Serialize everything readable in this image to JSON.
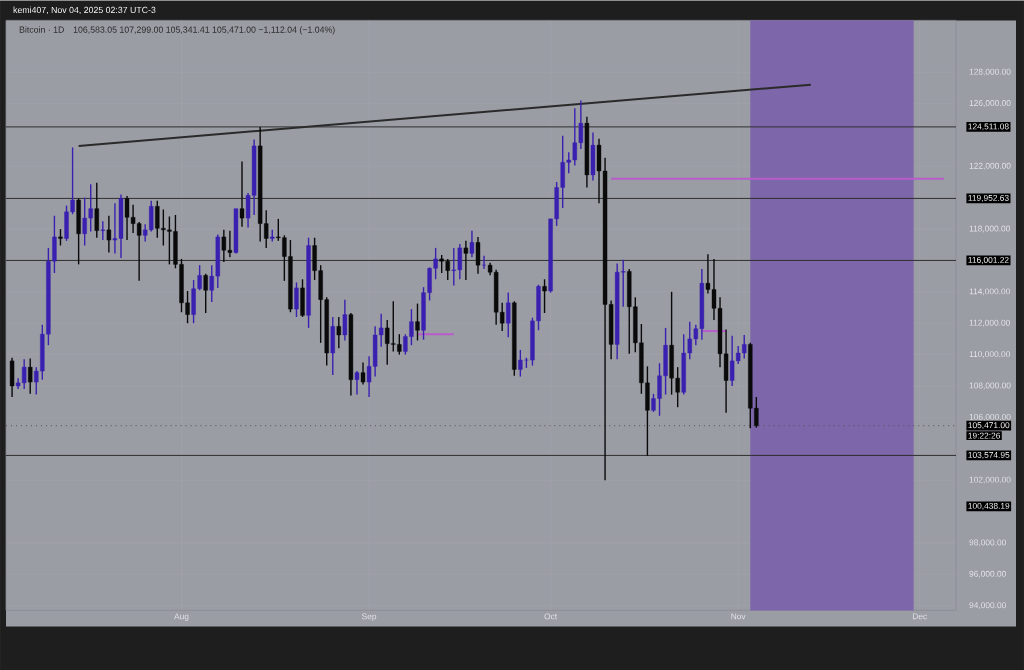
{
  "chart_data": {
    "type": "candlestick",
    "title": "Bitcoin · 1D",
    "annotations": [
      "kemi407, Nov 04, 2025 02:37 UTC-3",
      "106,583.05   107,299.00   105,341.41   105,471.00   −1,112.04 (−1.04%)",
      "19:22:26",
      "100,438.19"
    ],
    "x": [
      "2025-07-04",
      "2025-07-05",
      "2025-07-06",
      "2025-07-07",
      "2025-07-08",
      "2025-07-09",
      "2025-07-10",
      "2025-07-11",
      "2025-07-12",
      "2025-07-13",
      "2025-07-14",
      "2025-07-15",
      "2025-07-16",
      "2025-07-17",
      "2025-07-18",
      "2025-07-19",
      "2025-07-20",
      "2025-07-21",
      "2025-07-22",
      "2025-07-23",
      "2025-07-24",
      "2025-07-25",
      "2025-07-26",
      "2025-07-27",
      "2025-07-28",
      "2025-07-29",
      "2025-07-30",
      "2025-07-31",
      "2025-08-01",
      "2025-08-02",
      "2025-08-03",
      "2025-08-04",
      "2025-08-05",
      "2025-08-06",
      "2025-08-07",
      "2025-08-08",
      "2025-08-09",
      "2025-08-10",
      "2025-08-11",
      "2025-08-12",
      "2025-08-13",
      "2025-08-14",
      "2025-08-15",
      "2025-08-16",
      "2025-08-17",
      "2025-08-18",
      "2025-08-19",
      "2025-08-20",
      "2025-08-21",
      "2025-08-22",
      "2025-08-23",
      "2025-08-24",
      "2025-08-25",
      "2025-08-26",
      "2025-08-27",
      "2025-08-28",
      "2025-08-29",
      "2025-08-30",
      "2025-08-31",
      "2025-09-01",
      "2025-09-02",
      "2025-09-03",
      "2025-09-04",
      "2025-09-05",
      "2025-09-06",
      "2025-09-07",
      "2025-09-08",
      "2025-09-09",
      "2025-09-10",
      "2025-09-11",
      "2025-09-12",
      "2025-09-13",
      "2025-09-14",
      "2025-09-15",
      "2025-09-16",
      "2025-09-17",
      "2025-09-18",
      "2025-09-19",
      "2025-09-20",
      "2025-09-21",
      "2025-09-22",
      "2025-09-23",
      "2025-09-24",
      "2025-09-25",
      "2025-09-26",
      "2025-09-27",
      "2025-09-28",
      "2025-09-29",
      "2025-09-30",
      "2025-10-01",
      "2025-10-02",
      "2025-10-03",
      "2025-10-04",
      "2025-10-05",
      "2025-10-06",
      "2025-10-07",
      "2025-10-08",
      "2025-10-09",
      "2025-10-10",
      "2025-10-11",
      "2025-10-12",
      "2025-10-13",
      "2025-10-14",
      "2025-10-15",
      "2025-10-16",
      "2025-10-17",
      "2025-10-18",
      "2025-10-19",
      "2025-10-20",
      "2025-10-21",
      "2025-10-22",
      "2025-10-23",
      "2025-10-24",
      "2025-10-25",
      "2025-10-26",
      "2025-10-27",
      "2025-10-28",
      "2025-10-29",
      "2025-10-30",
      "2025-10-31",
      "2025-11-01",
      "2025-11-02",
      "2025-11-03",
      "2025-11-04"
    ],
    "ohlc": [
      [
        109600,
        109800,
        107300,
        108000
      ],
      [
        108000,
        108500,
        107800,
        108200
      ],
      [
        108200,
        109700,
        107800,
        109200
      ],
      [
        109200,
        109750,
        107500,
        108250
      ],
      [
        108250,
        109200,
        107450,
        108950
      ],
      [
        108950,
        111900,
        108400,
        111300
      ],
      [
        111300,
        116800,
        110600,
        115950
      ],
      [
        115950,
        118850,
        115200,
        117500
      ],
      [
        117500,
        118000,
        116950,
        117400
      ],
      [
        117400,
        119500,
        117250,
        119100
      ],
      [
        119100,
        123200,
        118950,
        119850
      ],
      [
        119850,
        119950,
        115750,
        117700
      ],
      [
        117700,
        120000,
        116950,
        118700
      ],
      [
        118700,
        120850,
        117850,
        119300
      ],
      [
        119300,
        120950,
        117450,
        117900
      ],
      [
        117900,
        118500,
        117300,
        117950
      ],
      [
        117950,
        118850,
        116500,
        117300
      ],
      [
        117300,
        119650,
        116450,
        117400
      ],
      [
        117400,
        120200,
        116150,
        119950
      ],
      [
        119950,
        120100,
        117300,
        118750
      ],
      [
        118750,
        119550,
        117750,
        118350
      ],
      [
        118350,
        118450,
        114700,
        117600
      ],
      [
        117600,
        118300,
        117200,
        117950
      ],
      [
        117950,
        119800,
        117850,
        119450
      ],
      [
        119450,
        119800,
        117450,
        118050
      ],
      [
        118050,
        119250,
        116950,
        117950
      ],
      [
        117950,
        118800,
        115750,
        117850
      ],
      [
        117850,
        118900,
        115500,
        115750
      ],
      [
        115750,
        116100,
        112700,
        113300
      ],
      [
        113300,
        114050,
        112000,
        112550
      ],
      [
        112550,
        114750,
        112000,
        114200
      ],
      [
        114200,
        115700,
        114100,
        115050
      ],
      [
        115050,
        115150,
        112650,
        114100
      ],
      [
        114100,
        115700,
        113350,
        115000
      ],
      [
        115000,
        117650,
        114250,
        117500
      ],
      [
        117500,
        117950,
        115900,
        116650
      ],
      [
        116650,
        117900,
        116200,
        116500
      ],
      [
        116500,
        119300,
        116450,
        119300
      ],
      [
        119300,
        122300,
        118150,
        118700
      ],
      [
        118700,
        120300,
        118100,
        120150
      ],
      [
        120150,
        123700,
        118900,
        123300
      ],
      [
        123300,
        124500,
        117200,
        118350
      ],
      [
        118350,
        119200,
        116800,
        117400
      ],
      [
        117400,
        117950,
        117200,
        117500
      ],
      [
        117500,
        118650,
        117250,
        117450
      ],
      [
        117450,
        117600,
        114700,
        116250
      ],
      [
        116250,
        117300,
        112700,
        112900
      ],
      [
        112900,
        114600,
        112400,
        114250
      ],
      [
        114250,
        114800,
        112400,
        112500
      ],
      [
        112500,
        117450,
        111700,
        116950
      ],
      [
        116950,
        117450,
        114750,
        115350
      ],
      [
        115350,
        115700,
        110750,
        113500
      ],
      [
        113500,
        113650,
        109300,
        110100
      ],
      [
        110100,
        112400,
        108700,
        111800
      ],
      [
        111800,
        112400,
        110400,
        111250
      ],
      [
        111250,
        113500,
        110900,
        112550
      ],
      [
        112550,
        112650,
        107400,
        108400
      ],
      [
        108400,
        108950,
        107450,
        108850
      ],
      [
        108850,
        109500,
        108100,
        108250
      ],
      [
        108250,
        109900,
        107300,
        109250
      ],
      [
        109250,
        111800,
        108600,
        111250
      ],
      [
        111250,
        112600,
        110500,
        111700
      ],
      [
        111700,
        112200,
        109350,
        110700
      ],
      [
        110700,
        113400,
        110200,
        110650
      ],
      [
        110650,
        111300,
        110000,
        110200
      ],
      [
        110200,
        111300,
        110000,
        111150
      ],
      [
        111150,
        112900,
        110600,
        112100
      ],
      [
        112100,
        113250,
        110900,
        111550
      ],
      [
        111550,
        114300,
        110950,
        113950
      ],
      [
        113950,
        115550,
        113450,
        115500
      ],
      [
        115500,
        116800,
        114800,
        116100
      ],
      [
        116100,
        116350,
        115200,
        115950
      ],
      [
        115950,
        116100,
        114750,
        115350
      ],
      [
        115350,
        116800,
        114400,
        115400
      ],
      [
        115400,
        117050,
        114800,
        116800
      ],
      [
        116800,
        117250,
        114750,
        116450
      ],
      [
        116450,
        117900,
        116200,
        117150
      ],
      [
        117150,
        117500,
        115150,
        115700
      ],
      [
        115700,
        116300,
        115450,
        115700
      ],
      [
        115700,
        115850,
        115050,
        115250
      ],
      [
        115250,
        115400,
        111900,
        112700
      ],
      [
        112700,
        113300,
        111500,
        112000
      ],
      [
        112000,
        113950,
        111100,
        113300
      ],
      [
        113300,
        113400,
        108650,
        109050
      ],
      [
        109050,
        110300,
        108600,
        109650
      ],
      [
        109650,
        109800,
        109150,
        109650
      ],
      [
        109650,
        112350,
        109300,
        112150
      ],
      [
        112150,
        114450,
        111550,
        114350
      ],
      [
        114350,
        114800,
        112650,
        114050
      ],
      [
        114050,
        118650,
        113950,
        118650
      ],
      [
        118650,
        121000,
        118200,
        120650
      ],
      [
        120650,
        123950,
        119350,
        122250
      ],
      [
        122250,
        122900,
        121550,
        122400
      ],
      [
        122400,
        125700,
        122050,
        123500
      ],
      [
        123500,
        126200,
        123100,
        124750
      ],
      [
        124750,
        125150,
        120650,
        121450
      ],
      [
        121450,
        124150,
        121100,
        123350
      ],
      [
        123350,
        123750,
        119650,
        121700
      ],
      [
        121700,
        122550,
        102000,
        113200
      ],
      [
        113200,
        113450,
        109700,
        110650
      ],
      [
        110650,
        115800,
        109700,
        115250
      ],
      [
        115250,
        116050,
        113050,
        115300
      ],
      [
        115300,
        115450,
        110050,
        113050
      ],
      [
        113050,
        113650,
        110150,
        110750
      ],
      [
        110750,
        111950,
        107500,
        108200
      ],
      [
        108200,
        109250,
        103550,
        106450
      ],
      [
        106450,
        107500,
        106350,
        107200
      ],
      [
        107200,
        109450,
        106100,
        108650
      ],
      [
        108650,
        111700,
        107450,
        110600
      ],
      [
        110600,
        114000,
        107450,
        108500
      ],
      [
        108500,
        109200,
        106650,
        107600
      ],
      [
        107600,
        111300,
        107450,
        110100
      ],
      [
        110100,
        112100,
        109700,
        111000
      ],
      [
        111000,
        111900,
        110600,
        111650
      ],
      [
        111650,
        115450,
        110950,
        114550
      ],
      [
        114550,
        116400,
        113900,
        114150
      ],
      [
        114150,
        116100,
        112200,
        112950
      ],
      [
        112950,
        113650,
        109200,
        110050
      ],
      [
        110050,
        111600,
        106300,
        108350
      ],
      [
        108350,
        111200,
        108000,
        109600
      ],
      [
        109600,
        110550,
        109400,
        110100
      ],
      [
        110100,
        111250,
        109750,
        110650
      ],
      [
        110650,
        110750,
        105300,
        106583.05
      ],
      [
        106583.05,
        107299.0,
        105341.41,
        105471.0
      ]
    ],
    "colors": [
      "#0a0a0a",
      "#3a20b0",
      "#3a20b0",
      "#0a0a0a",
      "#3a20b0",
      "#3a20b0",
      "#3a20b0",
      "#3a20b0",
      "#0a0a0a",
      "#3a20b0",
      "#3a20b0",
      "#0a0a0a",
      "#3a20b0",
      "#3a20b0",
      "#0a0a0a",
      "#3a20b0",
      "#0a0a0a",
      "#3a20b0",
      "#3a20b0",
      "#0a0a0a",
      "#0a0a0a",
      "#0a0a0a",
      "#3a20b0",
      "#3a20b0",
      "#0a0a0a",
      "#0a0a0a",
      "#0a0a0a",
      "#0a0a0a",
      "#0a0a0a",
      "#0a0a0a",
      "#3a20b0",
      "#3a20b0",
      "#0a0a0a",
      "#3a20b0",
      "#3a20b0",
      "#0a0a0a",
      "#0a0a0a",
      "#3a20b0",
      "#0a0a0a",
      "#3a20b0",
      "#3a20b0",
      "#0a0a0a",
      "#0a0a0a",
      "#3a20b0",
      "#0a0a0a",
      "#0a0a0a",
      "#0a0a0a",
      "#3a20b0",
      "#0a0a0a",
      "#3a20b0",
      "#0a0a0a",
      "#0a0a0a",
      "#0a0a0a",
      "#3a20b0",
      "#0a0a0a",
      "#3a20b0",
      "#0a0a0a",
      "#3a20b0",
      "#0a0a0a",
      "#3a20b0",
      "#3a20b0",
      "#3a20b0",
      "#0a0a0a",
      "#0a0a0a",
      "#0a0a0a",
      "#3a20b0",
      "#3a20b0",
      "#0a0a0a",
      "#3a20b0",
      "#3a20b0",
      "#3a20b0",
      "#0a0a0a",
      "#0a0a0a",
      "#3a20b0",
      "#3a20b0",
      "#0a0a0a",
      "#3a20b0",
      "#0a0a0a",
      "#3a20b0",
      "#0a0a0a",
      "#0a0a0a",
      "#0a0a0a",
      "#3a20b0",
      "#0a0a0a",
      "#3a20b0",
      "#3a20b0",
      "#3a20b0",
      "#3a20b0",
      "#0a0a0a",
      "#3a20b0",
      "#3a20b0",
      "#3a20b0",
      "#3a20b0",
      "#3a20b0",
      "#3a20b0",
      "#0a0a0a",
      "#3a20b0",
      "#0a0a0a",
      "#0a0a0a",
      "#0a0a0a",
      "#3a20b0",
      "#3a20b0",
      "#0a0a0a",
      "#0a0a0a",
      "#0a0a0a",
      "#0a0a0a",
      "#3a20b0",
      "#3a20b0",
      "#3a20b0",
      "#0a0a0a",
      "#0a0a0a",
      "#3a20b0",
      "#3a20b0",
      "#3a20b0",
      "#3a20b0",
      "#0a0a0a",
      "#0a0a0a",
      "#0a0a0a",
      "#0a0a0a",
      "#3a20b0",
      "#3a20b0",
      "#3a20b0",
      "#0a0a0a",
      "#0a0a0a"
    ],
    "series": [
      {
        "type": "line",
        "color": "#2a2a2a",
        "x": [
          "2025-07-15",
          "2025-11-13"
        ],
        "values": [
          123300,
          127200
        ]
      },
      {
        "type": "line",
        "color": "#b85ccc",
        "x": [
          "2025-10-11",
          "2025-12-05"
        ],
        "values": [
          121200,
          121200
        ]
      },
      {
        "type": "line",
        "color": "#b85ccc",
        "x": [
          "2025-09-09",
          "2025-09-15"
        ],
        "values": [
          111300,
          111300
        ]
      },
      {
        "type": "line",
        "color": "#b85ccc",
        "x": [
          "2025-10-26",
          "2025-10-30"
        ],
        "values": [
          111500,
          111500
        ]
      }
    ],
    "ref_lines": [
      {
        "axis": "y",
        "value": 124511.08,
        "label": "124,511.08",
        "color": "#2e2e2e"
      },
      {
        "axis": "y",
        "value": 119952.63,
        "label": "119,952.63",
        "color": "#2e2e2e"
      },
      {
        "axis": "y",
        "value": 116001.22,
        "label": "116,001.22",
        "color": "#2e2e2e"
      },
      {
        "axis": "y",
        "value": 105471.0,
        "label": "105,471.00",
        "color": "#505050",
        "line_style": "dotted"
      },
      {
        "axis": "y",
        "value": 103574.95,
        "label": "103,574.95",
        "color": "#2e2e2e"
      }
    ],
    "bands": [
      {
        "axis": "x",
        "from": "2025-11-03",
        "to": "2025-11-30",
        "color": "#7d66a9"
      }
    ],
    "xlim": [
      "2025-07-03",
      "2025-12-07"
    ],
    "xticks": [
      {
        "value": "2025-08-01",
        "label": "Aug"
      },
      {
        "value": "2025-09-01",
        "label": "Sep"
      },
      {
        "value": "2025-10-01",
        "label": "Oct"
      },
      {
        "value": "2025-11-01",
        "label": "Nov"
      },
      {
        "value": "2025-12-01",
        "label": "Dec"
      }
    ],
    "ylim": [
      93700,
      131300
    ],
    "yticks": [
      {
        "value": 94000,
        "label": "94,000.00"
      },
      {
        "value": 96000,
        "label": "96,000.00"
      },
      {
        "value": 98000,
        "label": "98,000.00"
      },
      {
        "value": 102000,
        "label": "102,000.00"
      },
      {
        "value": 106000,
        "label": "106,000.00"
      },
      {
        "value": 108000,
        "label": "108,000.00"
      },
      {
        "value": 110000,
        "label": "110,000.00"
      },
      {
        "value": 112000,
        "label": "112,000.00"
      },
      {
        "value": 114000,
        "label": "114,000.00"
      },
      {
        "value": 118000,
        "label": "118,000.00"
      },
      {
        "value": 122000,
        "label": "122,000.00"
      },
      {
        "value": 126000,
        "label": "126,000.00"
      },
      {
        "value": 128000,
        "label": "128,000.00"
      }
    ],
    "grid": true
  }
}
